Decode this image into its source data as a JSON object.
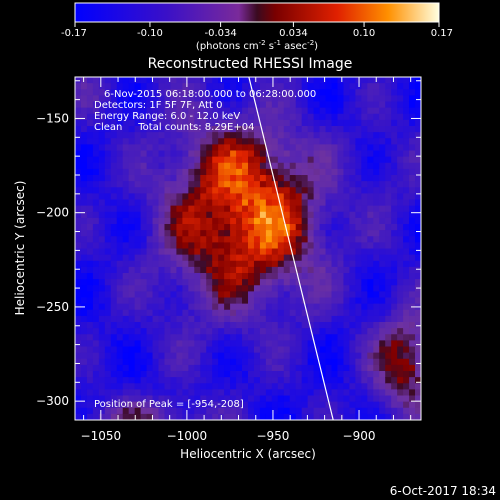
{
  "colorbar": {
    "tick_labels": [
      "-0.17",
      "-0.10",
      "-0.034",
      "0.034",
      "0.10",
      "0.17"
    ],
    "tick_values": [
      -0.17,
      -0.1,
      -0.034,
      0.034,
      0.1,
      0.17
    ],
    "units_prefix": "(photons cm",
    "units_exp1": "-2",
    "units_mid1": " s",
    "units_exp2": "-1",
    "units_mid2": " asec",
    "units_exp3": "-2",
    "units_suffix": ")"
  },
  "chart_data": {
    "type": "heatmap",
    "title": "Reconstructed RHESSI Image",
    "xlabel": "Heliocentric X (arcsec)",
    "ylabel": "Heliocentric Y (arcsec)",
    "xlim": [
      -1065,
      -864
    ],
    "ylim": [
      -310,
      -128
    ],
    "xticks": [
      -1050,
      -1000,
      -950,
      -900
    ],
    "yticks": [
      -150,
      -200,
      -250,
      -300
    ],
    "xtick_labels": [
      "−1050",
      "−1000",
      "−950",
      "−900"
    ],
    "ytick_labels": [
      "−150",
      "−200",
      "−250",
      "−300"
    ],
    "value_range": [
      -0.17,
      0.17
    ],
    "peak": [
      -954,
      -208
    ],
    "sources": [
      {
        "x": -955,
        "y": -205,
        "amplitude": 0.2,
        "sigma_x": 26,
        "sigma_y": 30
      },
      {
        "x": -995,
        "y": -202,
        "amplitude": 0.09,
        "sigma_x": 22,
        "sigma_y": 40
      },
      {
        "x": -968,
        "y": -170,
        "amplitude": 0.05,
        "sigma_x": 22,
        "sigma_y": 14
      },
      {
        "x": -872,
        "y": -280,
        "amplitude": 0.16,
        "sigma_x": 14,
        "sigma_y": 20
      },
      {
        "x": -1025,
        "y": -310,
        "amplitude": 0.1,
        "sigma_x": 25,
        "sigma_y": 8
      },
      {
        "x": -1060,
        "y": -135,
        "amplitude": 0.04,
        "sigma_x": 15,
        "sigma_y": 12
      },
      {
        "x": -880,
        "y": -180,
        "amplitude": 0.03,
        "sigma_x": 15,
        "sigma_y": 20
      }
    ],
    "background": -0.13,
    "limb_line": [
      [
        -964,
        -128
      ],
      [
        -915,
        -310
      ]
    ],
    "annotations": [
      "6-Nov-2015 06:18:00.000 to 06:28:00.000",
      "Detectors: 1F 5F 7F, Att 0",
      "Energy Range: 6.0 - 12.0 keV",
      "Clean     Total counts: 8.29E+04"
    ],
    "peak_label": "Position of Peak = [-954,-208]"
  },
  "timestamp": "6-Oct-2017 18:34"
}
